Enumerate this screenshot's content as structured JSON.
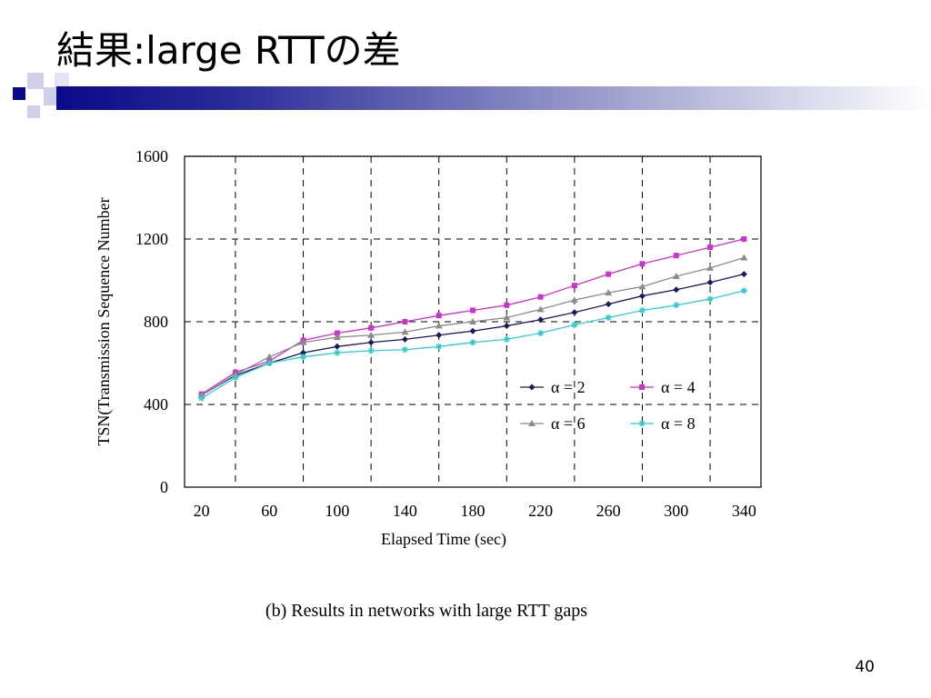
{
  "slide": {
    "title": "結果:large RTTの差",
    "page_number": "40"
  },
  "colors": {
    "accent": "#0a0a8a",
    "alpha2": "#1a1a5a",
    "alpha4": "#cc33cc",
    "alpha6": "#8c8c8c",
    "alpha8": "#33cccc"
  },
  "chart_data": {
    "type": "line",
    "caption": "(b) Results in networks with large RTT gaps",
    "xlabel": "Elapsed Time (sec)",
    "ylabel": "TSN(Transmission Sequence Number",
    "xlim": [
      10,
      350
    ],
    "ylim": [
      0,
      1600
    ],
    "xticks": [
      20,
      60,
      100,
      140,
      180,
      220,
      260,
      300,
      340
    ],
    "yticks": [
      0,
      400,
      800,
      1200,
      1600
    ],
    "grid": true,
    "legend_position": "lower-right",
    "x": [
      20,
      40,
      60,
      80,
      100,
      120,
      140,
      160,
      180,
      200,
      220,
      240,
      260,
      280,
      300,
      320,
      340
    ],
    "series": [
      {
        "name": "α = 2",
        "marker": "diamond",
        "color": "#1a1a5a",
        "values": [
          445,
          540,
          600,
          650,
          680,
          700,
          715,
          735,
          755,
          780,
          810,
          845,
          885,
          925,
          955,
          990,
          1030
        ]
      },
      {
        "name": "α = 4",
        "marker": "square",
        "color": "#cc33cc",
        "values": [
          450,
          555,
          610,
          710,
          745,
          770,
          800,
          830,
          855,
          880,
          920,
          975,
          1030,
          1080,
          1120,
          1160,
          1200
        ]
      },
      {
        "name": "α = 6",
        "marker": "triangle",
        "color": "#8c8c8c",
        "values": [
          445,
          545,
          630,
          700,
          725,
          735,
          750,
          780,
          800,
          820,
          860,
          905,
          940,
          970,
          1020,
          1060,
          1110
        ]
      },
      {
        "name": "α = 8",
        "marker": "star",
        "color": "#33cccc",
        "values": [
          430,
          530,
          600,
          630,
          650,
          660,
          665,
          680,
          700,
          715,
          745,
          785,
          820,
          855,
          880,
          910,
          950
        ]
      }
    ]
  }
}
